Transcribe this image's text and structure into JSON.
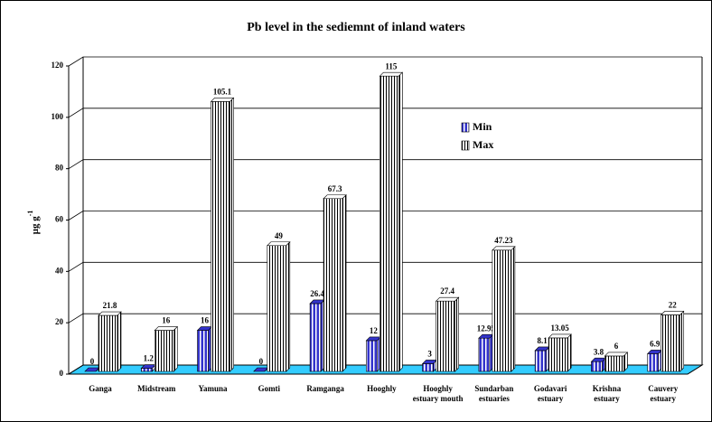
{
  "chart_data": {
    "type": "bar3d",
    "title": "Pb level in the sediemnt of inland waters",
    "y_label": "µg g",
    "y_label_superscript": "-1",
    "categories": [
      "Ganga",
      "Midstream",
      "Yamuna",
      "Gomti",
      "Ramganga",
      "Hooghly",
      "Hooghly estuary mouth",
      "Sundarban estuaries",
      "Godavari estuary",
      "Krishna estuary",
      "Cauvery estuary"
    ],
    "series": [
      {
        "name": "Min",
        "color": "#3333cc",
        "values": [
          0,
          1.2,
          16,
          0,
          26.4,
          12,
          3,
          12.95,
          8.1,
          3.8,
          6.9
        ]
      },
      {
        "name": "Max",
        "color": "#ffffff",
        "values": [
          21.8,
          16,
          105.1,
          49,
          67.3,
          115,
          27.4,
          47.23,
          13.05,
          6,
          22
        ]
      }
    ],
    "ylim": [
      0,
      120
    ],
    "yticks": [
      0,
      20,
      40,
      60,
      80,
      100,
      120
    ],
    "grid": true,
    "floor_color": "#33ccff"
  }
}
